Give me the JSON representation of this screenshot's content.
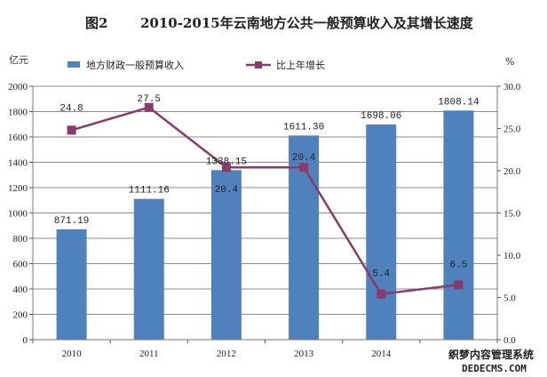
{
  "chart_data": {
    "type": "bar+line",
    "title_prefix": "图2",
    "title": "2010-2015年云南地方公共一般预算收入及其增长速度",
    "left_unit": "亿元",
    "right_unit": "%",
    "categories": [
      "2010",
      "2011",
      "2012",
      "2013",
      "2014",
      "2015"
    ],
    "left_axis": {
      "min": 0,
      "max": 2000,
      "ticks": [
        0,
        200,
        400,
        600,
        800,
        1000,
        1200,
        1400,
        1600,
        1800,
        2000
      ]
    },
    "right_axis": {
      "min": 0,
      "max": 30,
      "ticks": [
        "0.0",
        "5.0",
        "10.0",
        "15.0",
        "20.0",
        "25.0",
        "30.0"
      ]
    },
    "series": [
      {
        "name": "地方财政一般预算收入",
        "type": "bar",
        "axis": "left",
        "color": "#4f81bd",
        "values": [
          871.19,
          1111.16,
          1338.15,
          1611.3,
          1698.06,
          1808.14
        ],
        "labels": [
          "871.19",
          "1111.16",
          "1338.15",
          "1611.30",
          "1698.06",
          "1808.14"
        ]
      },
      {
        "name": "比上年增长",
        "type": "line",
        "axis": "right",
        "color": "#8c3a6b",
        "values": [
          24.8,
          27.5,
          20.4,
          20.4,
          5.4,
          6.5
        ],
        "labels": [
          "24.8",
          "27.5",
          "20.4",
          "20.4",
          "5.4",
          "6.5"
        ]
      }
    ],
    "grid": true,
    "legend_position": "top"
  },
  "watermark": {
    "line1": "织梦内容管理系统",
    "line2": "DEDECMS.COM"
  }
}
